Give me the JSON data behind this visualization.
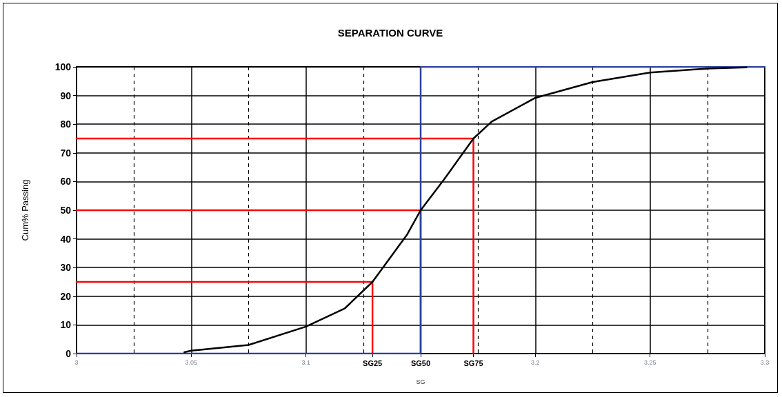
{
  "chart_data": {
    "type": "line",
    "title": "SEPARATION CURVE",
    "xlabel": "SG",
    "ylabel": "Cum% Passing",
    "xlim": [
      3,
      3.3
    ],
    "ylim": [
      0,
      100
    ],
    "xticks": [
      3,
      3.05,
      3.1,
      {
        "value": 3.129,
        "label": "SG25"
      },
      {
        "value": 3.15,
        "label": "SG50"
      },
      {
        "value": 3.173,
        "label": "SG75"
      },
      3.2,
      3.25,
      3.3
    ],
    "yticks": [
      0,
      10,
      20,
      30,
      40,
      50,
      60,
      70,
      80,
      90,
      100
    ],
    "grid": true,
    "marker": "none",
    "line_style": "solid",
    "series": [
      {
        "color": "#ff0000",
        "x": [
          3,
          3.129,
          3.129
        ],
        "values": [
          25,
          25,
          0
        ]
      },
      {
        "color": "#ff0000",
        "x": [
          3,
          3.15,
          3.15
        ],
        "values": [
          50,
          50,
          0
        ]
      },
      {
        "color": "#ff0000",
        "x": [
          3,
          3.173,
          3.173
        ],
        "values": [
          75,
          75,
          0
        ]
      },
      {
        "color": "#2e3f9e",
        "x": [
          3,
          3.15,
          3.15,
          3.3
        ],
        "values": [
          0,
          0,
          100,
          100
        ]
      },
      {
        "color": "#000000",
        "x": [
          3.047,
          3.05,
          3.075,
          3.1,
          3.117,
          3.129,
          3.144,
          3.15,
          3.16,
          3.173,
          3.181,
          3.2,
          3.225,
          3.25,
          3.275,
          3.292
        ],
        "values": [
          0.5,
          1,
          3,
          9.4,
          15.8,
          25,
          41.4,
          50,
          60.5,
          75,
          80.9,
          89.2,
          94.7,
          98,
          99.4,
          99.8
        ]
      }
    ]
  }
}
